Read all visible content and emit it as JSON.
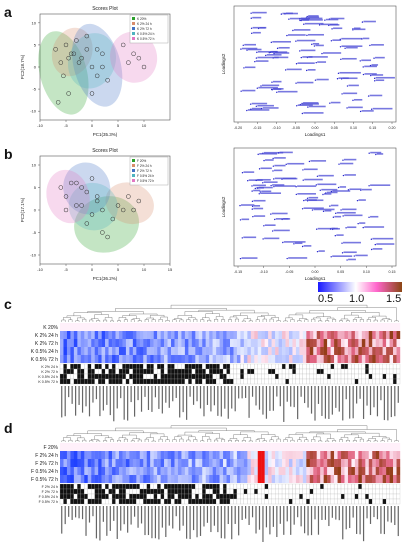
{
  "panels": {
    "a": "a",
    "b": "b",
    "c": "c",
    "d": "d"
  },
  "colorbar": {
    "ticks": [
      "0.5",
      "1.0",
      "1.5"
    ],
    "colors": [
      "#1a1aff",
      "#ffffff",
      "#ff66cc",
      "#8b4513"
    ]
  },
  "chart_data": [
    {
      "id": "a-scores",
      "type": "scatter",
      "title": "Scores Plot",
      "xlabel": "PC1(35.3%)",
      "ylabel": "PC2(18.7%)",
      "xlim": [
        -10,
        15
      ],
      "ylim": [
        -12,
        12
      ],
      "xticks": [
        "-10",
        "-5",
        "0",
        "5",
        "10"
      ],
      "legend": [
        "K 20%",
        "K 2% 24 h",
        "K 2% 72 h",
        "K 0.5% 24 h",
        "K 0.5% 72 h"
      ],
      "legend_position": "top-right",
      "series": [
        {
          "name": "K 20%",
          "color": "#2ca02c",
          "x": [
            -7,
            -6,
            -5.5,
            -4.5,
            -6.5,
            -3.5
          ],
          "y": [
            4,
            1,
            -2,
            -6,
            -8,
            3
          ]
        },
        {
          "name": "K 2% 24 h",
          "color": "#d98c6c",
          "x": [
            -5,
            -4,
            -3,
            -2.5,
            -4.5
          ],
          "y": [
            5,
            3,
            6,
            1,
            2
          ]
        },
        {
          "name": "K 2% 72 h",
          "color": "#4472c4",
          "x": [
            -1,
            1,
            2,
            3,
            0
          ],
          "y": [
            7,
            4,
            0,
            -3,
            -6
          ]
        },
        {
          "name": "K 0.5% 24 h",
          "color": "#4fb3bf",
          "x": [
            -2,
            0,
            1,
            -1,
            2
          ],
          "y": [
            2,
            0,
            -2,
            4,
            3
          ]
        },
        {
          "name": "K 0.5% 72 h",
          "color": "#e377c2",
          "x": [
            6,
            8,
            9,
            10,
            7
          ],
          "y": [
            5,
            3,
            2,
            0,
            1
          ]
        }
      ]
    },
    {
      "id": "a-loadings",
      "type": "scatter",
      "xlabel": "Loadings1",
      "ylabel": "Loadings2",
      "xticks": [
        "-0.20",
        "-0.15",
        "-0.10",
        "-0.05",
        "0.00",
        "0.05",
        "0.10",
        "0.15",
        "0.20"
      ],
      "xlim": [
        -0.2,
        0.2
      ],
      "ylim": [
        -0.3,
        0.3
      ]
    },
    {
      "id": "b-scores",
      "type": "scatter",
      "title": "Scores Plot",
      "xlabel": "PC1(36.2%)",
      "ylabel": "PC2(17.1%)",
      "xlim": [
        -10,
        15
      ],
      "ylim": [
        -12,
        12
      ],
      "xticks": [
        "-10",
        "-5",
        "0",
        "5",
        "10",
        "15"
      ],
      "legend": [
        "F 20%",
        "F 2% 24 h",
        "F 2% 72 h",
        "F 0.5% 24 h",
        "F 0.5% 72 h"
      ],
      "legend_position": "top-right",
      "series": [
        {
          "name": "F 20%",
          "color": "#2ca02c",
          "x": [
            -1,
            2,
            4,
            6,
            3
          ],
          "y": [
            -3,
            -5,
            -2,
            0,
            -6
          ]
        },
        {
          "name": "F 2% 24 h",
          "color": "#d98c6c",
          "x": [
            5,
            7,
            8,
            9
          ],
          "y": [
            1,
            3,
            0,
            2
          ]
        },
        {
          "name": "F 2% 72 h",
          "color": "#4472c4",
          "x": [
            -3,
            -1,
            0,
            1,
            -2
          ],
          "y": [
            6,
            4,
            7,
            2,
            5
          ]
        },
        {
          "name": "F 0.5% 24 h",
          "color": "#4fb3bf",
          "x": [
            -2,
            0,
            1,
            2
          ],
          "y": [
            1,
            -1,
            3,
            0
          ]
        },
        {
          "name": "F 0.5% 72 h",
          "color": "#e377c2",
          "x": [
            -6,
            -5,
            -4,
            -3,
            -5
          ],
          "y": [
            5,
            3,
            6,
            1,
            0
          ]
        }
      ]
    },
    {
      "id": "b-loadings",
      "type": "scatter",
      "xlabel": "Loadings1",
      "ylabel": "Loadings2",
      "xticks": [
        "-0.15",
        "-0.10",
        "-0.05",
        "0.00",
        "0.05",
        "0.10",
        "0.15"
      ],
      "xlim": [
        -0.15,
        0.15
      ],
      "ylim": [
        -0.3,
        0.3
      ]
    },
    {
      "id": "c-heatmap",
      "type": "heatmap",
      "rows": [
        "K 20%",
        "K 2% 24 h",
        "K 2% 72 h",
        "K 0.5% 24 h",
        "K 0.5% 72 h"
      ],
      "sig_rows": [
        "K 2% 24 h",
        "K 2% 72 h",
        "K 0.5% 24 h",
        "K 0.5% 72 h"
      ]
    },
    {
      "id": "d-heatmap",
      "type": "heatmap",
      "rows": [
        "F 20%",
        "F 2% 24 h",
        "F 2% 72 h",
        "F 0.5% 24 h",
        "F 0.5% 72 h"
      ],
      "sig_rows": [
        "F 2% 24 h",
        "F 2% 72 h",
        "F 0.5% 24 h",
        "F 0.5% 72 h"
      ]
    }
  ]
}
